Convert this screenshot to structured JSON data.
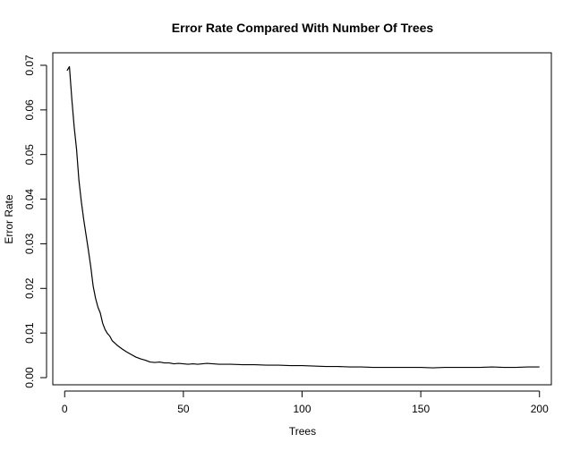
{
  "chart_data": {
    "type": "line",
    "title": "Error Rate Compared With Number Of Trees",
    "xlabel": "Trees",
    "ylabel": "Error Rate",
    "xlim": [
      -5,
      205
    ],
    "ylim": [
      -0.0016,
      0.0728
    ],
    "x_ticks": [
      0,
      50,
      100,
      150,
      200
    ],
    "x_tick_labels": [
      "0",
      "50",
      "100",
      "150",
      "200"
    ],
    "y_ticks": [
      0.0,
      0.01,
      0.02,
      0.03,
      0.04,
      0.05,
      0.06,
      0.07
    ],
    "y_tick_labels": [
      "0.00",
      "0.01",
      "0.02",
      "0.03",
      "0.04",
      "0.05",
      "0.06",
      "0.07"
    ],
    "grid": false,
    "line_color": "#000000",
    "series": [
      {
        "x": [
          1,
          2,
          3,
          4,
          5,
          6,
          7,
          8,
          9,
          10,
          11,
          12,
          13,
          14,
          15,
          16,
          17,
          18,
          19,
          20,
          22,
          24,
          26,
          28,
          30,
          32,
          34,
          36,
          38,
          40,
          42,
          44,
          46,
          48,
          50,
          52,
          54,
          56,
          58,
          60,
          65,
          70,
          75,
          80,
          85,
          90,
          95,
          100,
          105,
          110,
          115,
          120,
          125,
          130,
          135,
          140,
          145,
          150,
          155,
          160,
          165,
          170,
          175,
          180,
          185,
          190,
          195,
          200
        ],
        "y": [
          0.0688,
          0.0697,
          0.0625,
          0.0562,
          0.0512,
          0.0442,
          0.0395,
          0.0355,
          0.032,
          0.0285,
          0.0248,
          0.0205,
          0.0178,
          0.0158,
          0.0145,
          0.0122,
          0.0108,
          0.0099,
          0.0093,
          0.0083,
          0.0073,
          0.0065,
          0.0058,
          0.0052,
          0.0046,
          0.0042,
          0.0039,
          0.0035,
          0.0034,
          0.0035,
          0.0033,
          0.0033,
          0.0031,
          0.0032,
          0.0031,
          0.003,
          0.0031,
          0.003,
          0.0031,
          0.0032,
          0.003,
          0.003,
          0.0029,
          0.0029,
          0.0028,
          0.0028,
          0.0027,
          0.0027,
          0.0026,
          0.0025,
          0.0025,
          0.0024,
          0.0024,
          0.0023,
          0.0023,
          0.0023,
          0.0023,
          0.0023,
          0.0022,
          0.0023,
          0.0023,
          0.0023,
          0.0023,
          0.0024,
          0.0023,
          0.0023,
          0.0024,
          0.0024
        ]
      }
    ]
  }
}
